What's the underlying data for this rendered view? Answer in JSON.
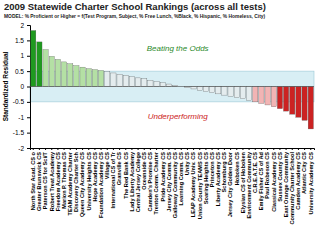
{
  "chart_data": {
    "type": "bar",
    "title": "2009 Statewide Charter School Rankings (across all tests)",
    "subtitle": "MODEL: % Proficient or Higher = f(Test Program, Subject, % Free Lunch, %Black, % Hispanic, % Homeless, City)",
    "y_label": "Standardized Residual",
    "categories": [
      "North Star Acad. CS o",
      "Greater Brunswick CS",
      "Paterson CS for Sci/T",
      "Robert Treat Academy",
      "Freedom Academy CS",
      "Marion P. Thomas CS",
      "TEAM Academy Charter",
      "Discovery Charter Sch",
      "Queen City Academy CS",
      "University Heights CS",
      "Hope Academy CS",
      "Foundation Academy CS",
      "Village CS",
      "International CS of Tr",
      "Granville CS",
      "The Red Bank CS",
      "Lady Liberty Academy",
      "Central Jersey College",
      "Oceanside CS",
      "Camden's Promise CS",
      "Trenton Comm. Charter",
      "Pride Academy CS",
      "Jersey City Comm. CS",
      "Galloway Community CS",
      "Learning Comm. CS",
      "Unity CS",
      "LEAP Academy Univ. CS",
      "Union County TEAMS CS",
      "Soaring Heights CS",
      "Princeton CS",
      "Liberty Academy CS",
      "Schomburg CS",
      "Jersey City Golden Door",
      "Hoboken CS",
      "Elysian CS of Hoboken",
      "Environment Community",
      "C.R.E.A.T.E. CS",
      "Emily Fisher CS of Ad",
      "Paul Robeson CS",
      "Classical Academy CS",
      "Sussex County CS",
      "East Orange Community",
      "Community Charter School",
      "Camden Academy CS",
      "Atlantic City CS",
      "University Academy CS"
    ],
    "values": [
      1.82,
      1.45,
      1.2,
      0.98,
      0.88,
      0.8,
      0.74,
      0.68,
      0.63,
      0.58,
      0.55,
      0.52,
      0.48,
      0.44,
      0.4,
      0.36,
      0.32,
      0.28,
      0.25,
      0.2,
      0.16,
      0.12,
      0.08,
      0.04,
      0,
      -0.04,
      -0.08,
      -0.12,
      -0.16,
      -0.2,
      -0.24,
      -0.28,
      -0.32,
      -0.36,
      -0.4,
      -0.45,
      -0.5,
      -0.55,
      -0.6,
      -0.66,
      -0.72,
      -0.8,
      -0.9,
      -1.0,
      -1.1,
      -1.38
    ],
    "colors": [
      "#1f9a1f",
      "#1f9a1f",
      "#b4e0a4",
      "#b4e0a4",
      "#b4e0a4",
      "#b4e0a4",
      "#b4e0a4",
      "#b4e0a4",
      "#b4e0a4",
      "#b4e0a4",
      "#b4e0a4",
      "#b4e0a4",
      "#e4ecee",
      "#e4ecee",
      "#e4ecee",
      "#e4ecee",
      "#e4ecee",
      "#e4ecee",
      "#e4ecee",
      "#e4ecee",
      "#e4ecee",
      "#e4ecee",
      "#e4ecee",
      "#e4ecee",
      "#e4ecee",
      "#e4ecee",
      "#e4ecee",
      "#e4ecee",
      "#e4ecee",
      "#e4ecee",
      "#e4ecee",
      "#e4ecee",
      "#e4ecee",
      "#e4ecee",
      "#e4ecee",
      "#e4ecee",
      "#f2b4b4",
      "#f2b4b4",
      "#f2b4b4",
      "#f2b4b4",
      "#cc2222",
      "#cc2222",
      "#cc2222",
      "#cc2222",
      "#cc2222",
      "#cc2222"
    ],
    "ylim": [
      -2,
      2
    ],
    "yticks": [
      -2,
      -1.5,
      -1,
      -0.5,
      0,
      0.5,
      1,
      1.5,
      2
    ],
    "reference_band": [
      -0.5,
      0.5
    ],
    "annotations": [
      {
        "text": "Beating the Odds",
        "color": "#2a8a2a"
      },
      {
        "text": "Underperforming",
        "color": "#cc2222"
      }
    ]
  }
}
